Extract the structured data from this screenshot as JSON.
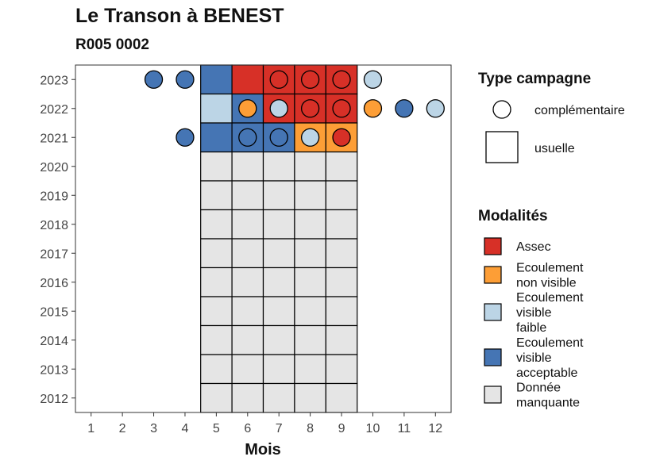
{
  "title": "Le Transon à BENEST",
  "subtitle": "R005 0002",
  "chart_data": {
    "type": "heatmap",
    "xlabel": "Mois",
    "ylabel": "",
    "x_ticks": [
      "1",
      "2",
      "3",
      "4",
      "5",
      "6",
      "7",
      "8",
      "9",
      "10",
      "11",
      "12"
    ],
    "y_ticks": [
      "2023",
      "2022",
      "2021",
      "2020",
      "2019",
      "2018",
      "2017",
      "2016",
      "2015",
      "2014",
      "2013",
      "2012"
    ],
    "xlim": [
      0.5,
      12.5
    ],
    "ylim": [
      2011.5,
      2023.5
    ],
    "colors": {
      "Assec": "#d73027",
      "Ecoulement non visible": "#fd9e36",
      "Ecoulement visible faible": "#bcd5e6",
      "Ecoulement visible acceptable": "#4575b4",
      "Donnée manquante": "#e5e5e5"
    },
    "usuelle": [
      {
        "year": 2023,
        "month": 5,
        "mod": "Ecoulement visible acceptable"
      },
      {
        "year": 2023,
        "month": 6,
        "mod": "Assec"
      },
      {
        "year": 2023,
        "month": 7,
        "mod": "Assec"
      },
      {
        "year": 2023,
        "month": 8,
        "mod": "Assec"
      },
      {
        "year": 2023,
        "month": 9,
        "mod": "Assec"
      },
      {
        "year": 2022,
        "month": 5,
        "mod": "Ecoulement visible faible"
      },
      {
        "year": 2022,
        "month": 6,
        "mod": "Ecoulement visible acceptable"
      },
      {
        "year": 2022,
        "month": 7,
        "mod": "Assec"
      },
      {
        "year": 2022,
        "month": 8,
        "mod": "Assec"
      },
      {
        "year": 2022,
        "month": 9,
        "mod": "Assec"
      },
      {
        "year": 2021,
        "month": 5,
        "mod": "Ecoulement visible acceptable"
      },
      {
        "year": 2021,
        "month": 6,
        "mod": "Ecoulement visible acceptable"
      },
      {
        "year": 2021,
        "month": 7,
        "mod": "Ecoulement visible acceptable"
      },
      {
        "year": 2021,
        "month": 8,
        "mod": "Ecoulement non visible"
      },
      {
        "year": 2021,
        "month": 9,
        "mod": "Ecoulement non visible"
      }
    ],
    "missing_years": [
      2020,
      2019,
      2018,
      2017,
      2016,
      2015,
      2014,
      2013,
      2012
    ],
    "missing_months": [
      5,
      6,
      7,
      8,
      9
    ],
    "complementaire": [
      {
        "year": 2023,
        "month": 3,
        "mod": "Ecoulement visible acceptable"
      },
      {
        "year": 2023,
        "month": 4,
        "mod": "Ecoulement visible acceptable"
      },
      {
        "year": 2023,
        "month": 7,
        "mod": "Assec"
      },
      {
        "year": 2023,
        "month": 8,
        "mod": "Assec"
      },
      {
        "year": 2023,
        "month": 9,
        "mod": "Assec"
      },
      {
        "year": 2023,
        "month": 10,
        "mod": "Ecoulement visible faible"
      },
      {
        "year": 2022,
        "month": 6,
        "mod": "Ecoulement non visible"
      },
      {
        "year": 2022,
        "month": 7,
        "mod": "Ecoulement visible faible"
      },
      {
        "year": 2022,
        "month": 8,
        "mod": "Assec"
      },
      {
        "year": 2022,
        "month": 9,
        "mod": "Assec"
      },
      {
        "year": 2022,
        "month": 10,
        "mod": "Ecoulement non visible"
      },
      {
        "year": 2022,
        "month": 11,
        "mod": "Ecoulement visible acceptable"
      },
      {
        "year": 2022,
        "month": 12,
        "mod": "Ecoulement visible faible"
      },
      {
        "year": 2021,
        "month": 4,
        "mod": "Ecoulement visible acceptable"
      },
      {
        "year": 2021,
        "month": 6,
        "mod": "Ecoulement visible acceptable"
      },
      {
        "year": 2021,
        "month": 7,
        "mod": "Ecoulement visible acceptable"
      },
      {
        "year": 2021,
        "month": 8,
        "mod": "Ecoulement visible faible"
      },
      {
        "year": 2021,
        "month": 9,
        "mod": "Assec"
      }
    ],
    "legend_type": {
      "title": "Type campagne",
      "items": [
        "complémentaire",
        "usuelle"
      ]
    },
    "legend_mod": {
      "title": "Modalités",
      "items": [
        {
          "key": "Assec",
          "lines": [
            "Assec"
          ]
        },
        {
          "key": "Ecoulement non visible",
          "lines": [
            "Ecoulement",
            "non visible"
          ]
        },
        {
          "key": "Ecoulement visible faible",
          "lines": [
            "Ecoulement",
            "visible",
            "faible"
          ]
        },
        {
          "key": "Ecoulement visible acceptable",
          "lines": [
            "Ecoulement",
            "visible",
            "acceptable"
          ]
        },
        {
          "key": "Donnée manquante",
          "lines": [
            "Donnée",
            "manquante"
          ]
        }
      ]
    },
    "legend_position": "right",
    "grid": false
  }
}
